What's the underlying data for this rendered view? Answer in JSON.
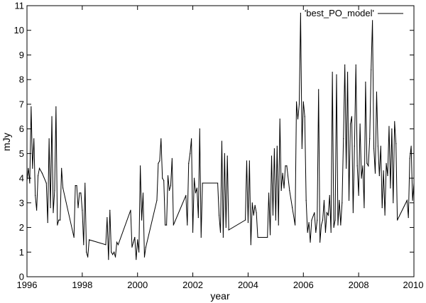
{
  "chart_data": {
    "type": "line",
    "title": "",
    "xlabel": "year",
    "ylabel": "mJy",
    "xlim": [
      1996,
      2010
    ],
    "ylim": [
      0,
      11
    ],
    "xticks": [
      1996,
      1998,
      2000,
      2002,
      2004,
      2006,
      2008,
      2010
    ],
    "yticks": [
      0,
      1,
      2,
      3,
      4,
      5,
      6,
      7,
      8,
      9,
      10,
      11
    ],
    "grid": false,
    "legend_position": "top-right",
    "series": [
      {
        "name": "'best_PO_model'",
        "color": "#000000",
        "points": [
          [
            1996.0,
            3.9
          ],
          [
            1996.05,
            4.4
          ],
          [
            1996.1,
            3.8
          ],
          [
            1996.15,
            6.9
          ],
          [
            1996.2,
            4.4
          ],
          [
            1996.25,
            5.6
          ],
          [
            1996.3,
            3.3
          ],
          [
            1996.35,
            2.7
          ],
          [
            1996.4,
            4.1
          ],
          [
            1996.45,
            4.4
          ],
          [
            1996.55,
            4.2
          ],
          [
            1996.7,
            3.8
          ],
          [
            1996.75,
            2.2
          ],
          [
            1996.8,
            5.6
          ],
          [
            1996.85,
            2.8
          ],
          [
            1996.9,
            6.5
          ],
          [
            1996.95,
            2.6
          ],
          [
            1997.0,
            3.5
          ],
          [
            1997.05,
            6.9
          ],
          [
            1997.1,
            2.1
          ],
          [
            1997.15,
            2.3
          ],
          [
            1997.2,
            2.3
          ],
          [
            1997.25,
            4.4
          ],
          [
            1997.3,
            3.6
          ],
          [
            1997.7,
            1.6
          ],
          [
            1997.75,
            3.7
          ],
          [
            1997.8,
            3.7
          ],
          [
            1997.85,
            2.8
          ],
          [
            1997.9,
            3.4
          ],
          [
            1997.95,
            3.4
          ],
          [
            1998.0,
            2.7
          ],
          [
            1998.05,
            1.3
          ],
          [
            1998.1,
            3.8
          ],
          [
            1998.15,
            1.0
          ],
          [
            1998.2,
            0.8
          ],
          [
            1998.25,
            1.5
          ],
          [
            1998.85,
            1.3
          ],
          [
            1998.9,
            2.4
          ],
          [
            1998.95,
            0.7
          ],
          [
            1999.0,
            2.7
          ],
          [
            1999.05,
            1.0
          ],
          [
            1999.1,
            0.9
          ],
          [
            1999.15,
            1.0
          ],
          [
            1999.2,
            0.8
          ],
          [
            1999.25,
            1.4
          ],
          [
            1999.3,
            1.3
          ],
          [
            1999.75,
            2.7
          ],
          [
            1999.8,
            1.2
          ],
          [
            1999.85,
            1.4
          ],
          [
            1999.9,
            1.6
          ],
          [
            1999.95,
            0.7
          ],
          [
            2000.0,
            1.5
          ],
          [
            2000.05,
            1.0
          ],
          [
            2000.1,
            4.5
          ],
          [
            2000.15,
            2.3
          ],
          [
            2000.2,
            3.4
          ],
          [
            2000.25,
            0.8
          ],
          [
            2000.3,
            1.2
          ],
          [
            2000.7,
            3.1
          ],
          [
            2000.75,
            4.6
          ],
          [
            2000.8,
            4.7
          ],
          [
            2000.85,
            5.6
          ],
          [
            2000.9,
            4.0
          ],
          [
            2000.95,
            3.9
          ],
          [
            2001.0,
            2.1
          ],
          [
            2001.05,
            2.1
          ],
          [
            2001.1,
            4.1
          ],
          [
            2001.15,
            3.5
          ],
          [
            2001.2,
            3.7
          ],
          [
            2001.25,
            4.8
          ],
          [
            2001.3,
            2.1
          ],
          [
            2001.75,
            3.3
          ],
          [
            2001.8,
            2.1
          ],
          [
            2001.85,
            4.6
          ],
          [
            2001.9,
            5.0
          ],
          [
            2001.95,
            5.6
          ],
          [
            2002.0,
            1.8
          ],
          [
            2002.05,
            4.0
          ],
          [
            2002.1,
            3.4
          ],
          [
            2002.15,
            3.6
          ],
          [
            2002.2,
            2.4
          ],
          [
            2002.25,
            6.0
          ],
          [
            2002.3,
            1.6
          ],
          [
            2002.35,
            3.8
          ],
          [
            2002.9,
            3.8
          ],
          [
            2002.95,
            2.5
          ],
          [
            2003.0,
            1.8
          ],
          [
            2003.05,
            5.5
          ],
          [
            2003.1,
            1.6
          ],
          [
            2003.15,
            5.0
          ],
          [
            2003.2,
            2.0
          ],
          [
            2003.25,
            4.9
          ],
          [
            2003.3,
            1.9
          ],
          [
            2003.9,
            2.3
          ],
          [
            2003.95,
            4.7
          ],
          [
            2004.0,
            2.2
          ],
          [
            2004.05,
            4.7
          ],
          [
            2004.1,
            1.3
          ],
          [
            2004.15,
            3.0
          ],
          [
            2004.2,
            2.5
          ],
          [
            2004.25,
            2.9
          ],
          [
            2004.3,
            2.6
          ],
          [
            2004.35,
            1.6
          ],
          [
            2004.7,
            1.6
          ],
          [
            2004.75,
            3.4
          ],
          [
            2004.8,
            1.7
          ],
          [
            2004.85,
            4.9
          ],
          [
            2004.9,
            2.5
          ],
          [
            2004.95,
            5.2
          ],
          [
            2005.0,
            2.3
          ],
          [
            2005.05,
            5.3
          ],
          [
            2005.1,
            2.1
          ],
          [
            2005.15,
            6.4
          ],
          [
            2005.2,
            3.5
          ],
          [
            2005.25,
            4.2
          ],
          [
            2005.3,
            3.6
          ],
          [
            2005.35,
            4.5
          ],
          [
            2005.4,
            4.5
          ],
          [
            2005.5,
            3.5
          ],
          [
            2005.6,
            2.8
          ],
          [
            2005.7,
            2.1
          ],
          [
            2005.75,
            7.1
          ],
          [
            2005.8,
            6.4
          ],
          [
            2005.85,
            7.0
          ],
          [
            2005.9,
            10.7
          ],
          [
            2005.95,
            5.2
          ],
          [
            2006.0,
            7.1
          ],
          [
            2006.05,
            6.5
          ],
          [
            2006.1,
            3.1
          ],
          [
            2006.15,
            1.8
          ],
          [
            2006.2,
            2.2
          ],
          [
            2006.25,
            1.4
          ],
          [
            2006.3,
            2.3
          ],
          [
            2006.4,
            2.6
          ],
          [
            2006.45,
            1.8
          ],
          [
            2006.5,
            2.3
          ],
          [
            2006.55,
            7.6
          ],
          [
            2006.6,
            1.4
          ],
          [
            2006.65,
            2.1
          ],
          [
            2006.7,
            2.3
          ],
          [
            2006.75,
            3.1
          ],
          [
            2006.8,
            1.8
          ],
          [
            2006.85,
            2.6
          ],
          [
            2006.9,
            2.5
          ],
          [
            2006.95,
            3.3
          ],
          [
            2007.0,
            1.8
          ],
          [
            2007.05,
            8.3
          ],
          [
            2007.1,
            2.0
          ],
          [
            2007.15,
            2.3
          ],
          [
            2007.2,
            8.2
          ],
          [
            2007.25,
            2.1
          ],
          [
            2007.3,
            3.1
          ],
          [
            2007.35,
            2.1
          ],
          [
            2007.4,
            3.0
          ],
          [
            2007.45,
            5.6
          ],
          [
            2007.5,
            8.6
          ],
          [
            2007.55,
            4.4
          ],
          [
            2007.6,
            8.3
          ],
          [
            2007.65,
            3.1
          ],
          [
            2007.7,
            6.2
          ],
          [
            2007.75,
            6.5
          ],
          [
            2007.8,
            2.6
          ],
          [
            2007.85,
            5.3
          ],
          [
            2007.9,
            8.6
          ],
          [
            2007.95,
            4.5
          ],
          [
            2008.0,
            3.3
          ],
          [
            2008.05,
            6.2
          ],
          [
            2008.1,
            4.0
          ],
          [
            2008.15,
            4.5
          ],
          [
            2008.2,
            2.8
          ],
          [
            2008.25,
            7.9
          ],
          [
            2008.3,
            4.6
          ],
          [
            2008.35,
            4.5
          ],
          [
            2008.4,
            5.6
          ],
          [
            2008.45,
            8.4
          ],
          [
            2008.5,
            10.4
          ],
          [
            2008.55,
            5.2
          ],
          [
            2008.6,
            4.2
          ],
          [
            2008.65,
            7.5
          ],
          [
            2008.7,
            5.3
          ],
          [
            2008.75,
            4.1
          ],
          [
            2008.8,
            5.3
          ],
          [
            2008.85,
            2.8
          ],
          [
            2008.9,
            4.3
          ],
          [
            2008.95,
            2.5
          ],
          [
            2009.0,
            4.6
          ],
          [
            2009.05,
            4.1
          ],
          [
            2009.1,
            6.1
          ],
          [
            2009.15,
            3.6
          ],
          [
            2009.2,
            6.0
          ],
          [
            2009.25,
            3.0
          ],
          [
            2009.3,
            6.3
          ],
          [
            2009.35,
            5.4
          ],
          [
            2009.4,
            2.3
          ],
          [
            2009.75,
            3.1
          ],
          [
            2009.8,
            2.4
          ],
          [
            2009.85,
            4.8
          ],
          [
            2009.9,
            5.3
          ],
          [
            2009.95,
            3.1
          ],
          [
            2010.0,
            3.8
          ]
        ]
      }
    ]
  }
}
